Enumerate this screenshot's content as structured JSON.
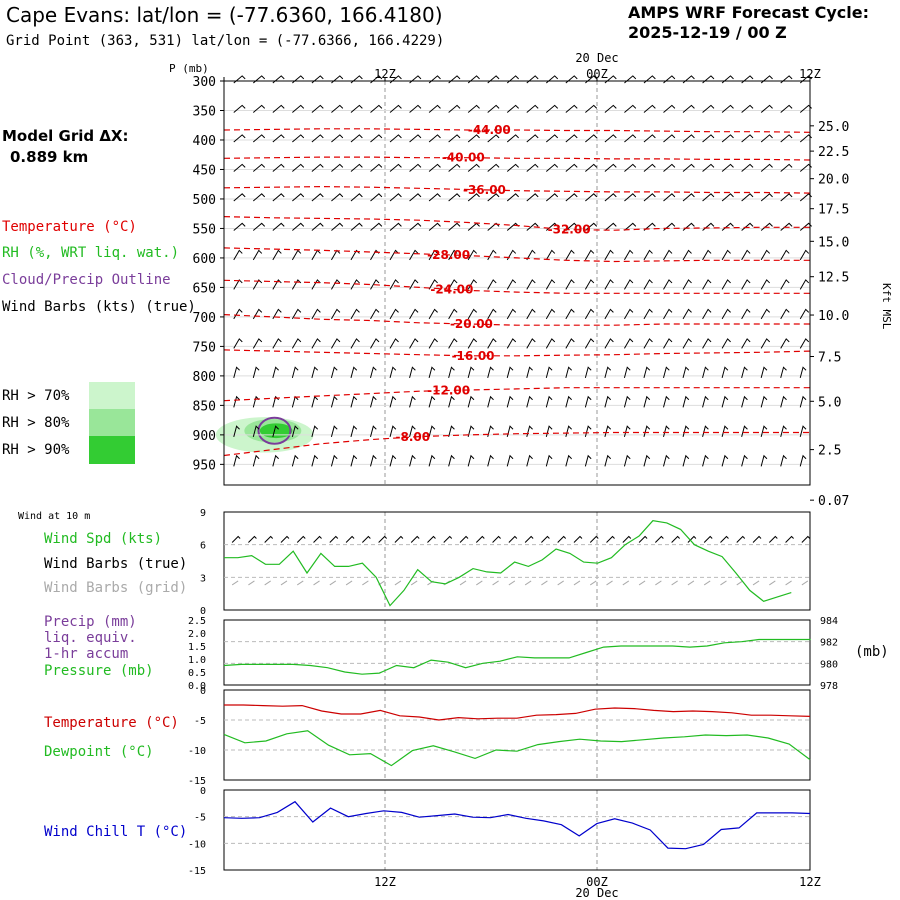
{
  "header": {
    "title": "Cape Evans:  lat/lon = (-77.6360, 166.4180)",
    "grid_point": "Grid Point (363, 531) lat/lon = (-77.6366, 166.4229)",
    "cycle_line1": "AMPS WRF Forecast Cycle:",
    "cycle_line2": "2025-12-19 / 00  Z"
  },
  "model_grid": {
    "label": "Model Grid ΔX:",
    "value": "0.889 km"
  },
  "legend_upper": {
    "temperature": "Temperature (°C)",
    "rh": "RH (%, WRT liq. wat.)",
    "cloud": "Cloud/Precip Outline",
    "wind": "Wind Barbs (kts) (true)",
    "rh70": "RH > 70%",
    "rh80": "RH > 80%",
    "rh90": "RH > 90%"
  },
  "colors": {
    "temp_line": "#e00000",
    "rh70": "#ccf5cc",
    "rh80": "#99e699",
    "rh90": "#33cc33",
    "cloud": "#7a3d9a",
    "green_line": "#22bb22",
    "red_line": "#cc0000",
    "blue_line": "#0000cc",
    "gray_barb": "#aaaaaa",
    "grid": "#999999"
  },
  "time_axis": {
    "top_labels": [
      "12Z",
      "00Z",
      "12Z"
    ],
    "date_label": "20 Dec",
    "bottom_labels": [
      "12Z",
      "00Z",
      "12Z"
    ],
    "bottom_date": "20 Dec"
  },
  "chart_data": [
    {
      "type": "line",
      "title": "Upper-air time-height cross section",
      "ylabel": "P (mb)",
      "y2label": "Kft MSL",
      "pressure_ticks": [
        "300",
        "350",
        "400",
        "450",
        "500",
        "550",
        "600",
        "650",
        "700",
        "750",
        "800",
        "850",
        "900",
        "950"
      ],
      "height_ticks": [
        "25.0",
        "22.5",
        "20.0",
        "17.5",
        "15.0",
        "12.5",
        "10.0",
        "7.5",
        "5.0",
        "2.5",
        "0.07"
      ],
      "height_values": [
        25.0,
        22.5,
        20.0,
        17.5,
        15.0,
        12.5,
        10.0,
        7.5,
        5.0,
        2.5,
        0.07
      ],
      "hours": [
        0,
        3,
        6,
        9,
        12,
        15,
        18,
        21,
        24,
        27,
        30,
        33,
        36
      ],
      "temperature_contours": [
        {
          "label": "-44.00",
          "value": -44,
          "label_hour": 16.3,
          "p": [
            383,
            382,
            381,
            381,
            382,
            383,
            383,
            384,
            384,
            385,
            386,
            386,
            387
          ]
        },
        {
          "label": "-40.00",
          "value": -40,
          "label_hour": 14.7,
          "p": [
            431,
            430,
            429,
            429,
            430,
            430,
            431,
            431,
            432,
            432,
            433,
            433,
            434
          ]
        },
        {
          "label": "-36.00",
          "value": -36,
          "label_hour": 16.0,
          "p": [
            481,
            480,
            479,
            480,
            482,
            484,
            486,
            487,
            488,
            488,
            489,
            489,
            490
          ]
        },
        {
          "label": "-32.00",
          "value": -32,
          "label_hour": 21.2,
          "p": [
            530,
            532,
            533,
            534,
            536,
            540,
            545,
            552,
            553,
            550,
            549,
            548,
            548
          ]
        },
        {
          "label": "-28.00",
          "value": -28,
          "label_hour": 13.8,
          "p": [
            583,
            585,
            587,
            590,
            593,
            596,
            600,
            604,
            606,
            605,
            604,
            604,
            604
          ]
        },
        {
          "label": "-24.00",
          "value": -24,
          "label_hour": 14.0,
          "p": [
            638,
            640,
            642,
            645,
            650,
            655,
            658,
            660,
            660,
            660,
            660,
            660,
            660
          ]
        },
        {
          "label": "-20.00",
          "value": -20,
          "label_hour": 15.2,
          "p": [
            696,
            700,
            704,
            706,
            710,
            712,
            714,
            714,
            714,
            712,
            712,
            712,
            712
          ]
        },
        {
          "label": "-16.00",
          "value": -16,
          "label_hour": 15.3,
          "p": [
            756,
            758,
            760,
            762,
            764,
            766,
            766,
            765,
            764,
            762,
            761,
            760,
            758
          ]
        },
        {
          "label": "-12.00",
          "value": -12,
          "label_hour": 13.8,
          "p": [
            842,
            838,
            834,
            830,
            826,
            824,
            822,
            820,
            820,
            820,
            820,
            820,
            820
          ]
        },
        {
          "label": "-8.00",
          "value": -8,
          "label_hour": 11.6,
          "p": [
            935,
            925,
            915,
            908,
            903,
            900,
            898,
            897,
            896,
            896,
            896,
            896,
            896
          ]
        }
      ],
      "wind_speed_by_level_kts": [
        [
          20,
          25,
          20,
          20,
          20,
          20,
          20,
          20,
          20,
          20,
          20,
          20,
          20
        ],
        [
          20,
          20,
          20,
          20,
          20,
          15,
          15,
          15,
          15,
          15,
          15,
          15,
          15
        ],
        [
          15,
          15,
          15,
          15,
          15,
          10,
          10,
          10,
          10,
          10,
          10,
          10,
          10
        ],
        [
          10,
          10,
          10,
          10,
          10,
          10,
          10,
          10,
          10,
          10,
          10,
          10,
          10
        ],
        [
          10,
          10,
          10,
          10,
          10,
          10,
          10,
          10,
          10,
          10,
          10,
          10,
          10
        ]
      ],
      "rh_regions": [
        {
          "level": ">70%",
          "center_hour": 2.5,
          "center_p": 900,
          "hours_span": 6,
          "p_span": 60
        },
        {
          "level": ">80%",
          "center_hour": 3,
          "center_p": 893,
          "hours_span": 3.5,
          "p_span": 40
        },
        {
          "level": ">90%",
          "center_hour": 3.2,
          "center_p": 893,
          "hours_span": 2,
          "p_span": 25
        }
      ]
    },
    {
      "type": "line",
      "title": "Wind at 10 m",
      "series": [
        {
          "name": "Wind Spd (kts)",
          "values": [
            4.8,
            4.8,
            5,
            4.2,
            4.2,
            5.4,
            3.4,
            5.2,
            4,
            4,
            4.3,
            3,
            0.4,
            1.8,
            3.7,
            2.6,
            2.4,
            3,
            3.8,
            3.5,
            3.4,
            4.4,
            4,
            4.6,
            5.6,
            5.2,
            4.4,
            4.3,
            4.8,
            6,
            6.8,
            8.2,
            8,
            7.4,
            6,
            5.4,
            4.9,
            3.4,
            1.8,
            0.8,
            1.2,
            1.6
          ]
        }
      ],
      "hour_step": 0.85,
      "ylim": [
        0,
        9
      ],
      "yticks": [
        "0",
        "3",
        "6",
        "9"
      ],
      "labels": {
        "spd": "Wind Spd (kts)",
        "barbs_true": "Wind Barbs (true)",
        "barbs_grid": "Wind Barbs (grid)"
      }
    },
    {
      "type": "line",
      "title": "Precip and Pressure",
      "pressure_series": {
        "name": "Pressure (mb)",
        "values": [
          979.8,
          979.9,
          979.9,
          979.9,
          979.9,
          979.8,
          979.6,
          979.2,
          979,
          979.1,
          979.8,
          979.6,
          980.3,
          980.1,
          979.6,
          980,
          980.2,
          980.6,
          980.5,
          980.5,
          980.5,
          981,
          981.5,
          981.6,
          981.6,
          981.6,
          981.6,
          981.5,
          981.6,
          981.9,
          982,
          982.2,
          982.2,
          982.2,
          982.2
        ]
      },
      "hour_step": 1.06,
      "precip_ticks": [
        "0.0",
        "0.5",
        "1.0",
        "1.5",
        "2.0",
        "2.5"
      ],
      "pressure_ticks": [
        "984",
        "982",
        "980",
        "978"
      ],
      "pressure_ylim": [
        978,
        984
      ],
      "labels": {
        "precip": "Precip (mm)",
        "liq": "liq. equiv.",
        "accum": "1-hr accum",
        "pressure": "Pressure (mb)",
        "unit": "(mb)"
      }
    },
    {
      "type": "line",
      "title": "Temperature and Dewpoint",
      "series": [
        {
          "name": "Temperature (°C)",
          "values": [
            -2.5,
            -2.5,
            -2.6,
            -2.7,
            -2.6,
            -3.5,
            -4,
            -4,
            -3.4,
            -4.3,
            -4.5,
            -5,
            -4.6,
            -4.8,
            -4.7,
            -4.7,
            -4.2,
            -4.1,
            -3.9,
            -3.2,
            -3,
            -3.1,
            -3.4,
            -3.6,
            -3.5,
            -3.6,
            -3.8,
            -4.2,
            -4.2,
            -4.3,
            -4.4
          ]
        },
        {
          "name": "Dewpoint (°C)",
          "values": [
            -7.4,
            -8.8,
            -8.5,
            -7.3,
            -6.8,
            -9.2,
            -10.8,
            -10.6,
            -12.6,
            -10.1,
            -9.3,
            -10.3,
            -11.4,
            -10,
            -10.2,
            -9.1,
            -8.6,
            -8.2,
            -8.5,
            -8.6,
            -8.3,
            -8,
            -7.8,
            -7.5,
            -7.6,
            -7.5,
            -8,
            -9,
            -11.6
          ]
        }
      ],
      "ylim": [
        -15,
        0
      ],
      "yticks": [
        "0",
        "-5",
        "-10",
        "-15"
      ],
      "labels": {
        "temp": "Temperature (°C)",
        "dew": "Dewpoint (°C)"
      }
    },
    {
      "type": "line",
      "title": "Wind Chill",
      "series": [
        {
          "name": "Wind Chill T (°C)",
          "values": [
            -5.2,
            -5.3,
            -5.2,
            -4.2,
            -2.2,
            -6,
            -3.4,
            -5,
            -4.4,
            -3.9,
            -4.2,
            -5.1,
            -4.8,
            -4.5,
            -5.1,
            -5.2,
            -4.6,
            -5.3,
            -5.8,
            -6.5,
            -8.6,
            -6.3,
            -5.4,
            -6.2,
            -7.5,
            -10.9,
            -11,
            -10.2,
            -7.4,
            -7.1,
            -4.3,
            -4.3,
            -4.3,
            -4.4
          ]
        }
      ],
      "ylim": [
        -15,
        0
      ],
      "yticks": [
        "0",
        "-5",
        "-10",
        "-15"
      ],
      "labels": {
        "wc": "Wind Chill T (°C)"
      }
    }
  ]
}
